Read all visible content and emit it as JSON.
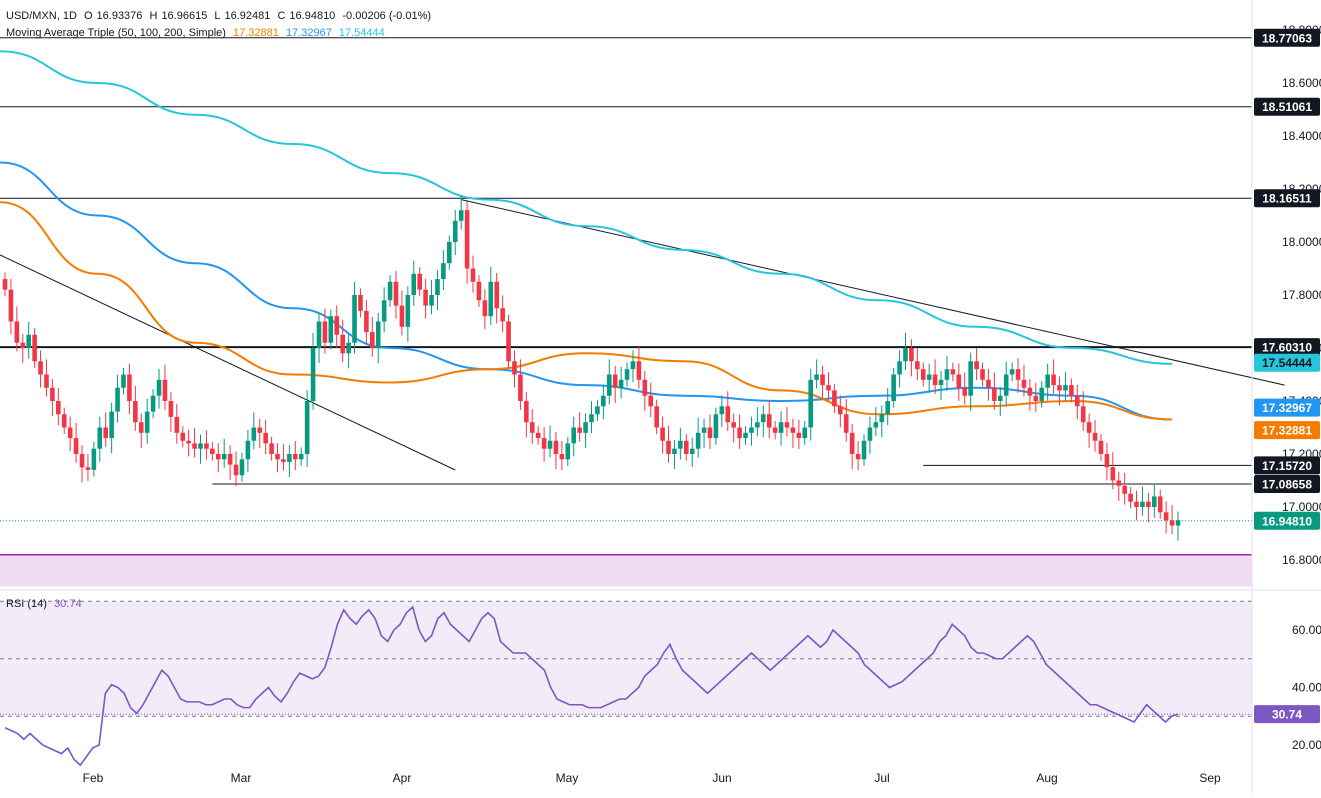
{
  "header": {
    "symbol": "USD/MXN, 1D",
    "open_label": "O",
    "open": "16.93376",
    "high_label": "H",
    "high": "16.96615",
    "low_label": "L",
    "low": "16.92481",
    "close_label": "C",
    "close": "16.94810",
    "change": "-0.00206 (-0.01%)",
    "ma_title": "Moving Average Triple (50, 100, 200, Simple)",
    "ma50": "17.32881",
    "ma100": "17.32967",
    "ma200": "17.54444",
    "rsi_title": "RSI (14)",
    "rsi_value": "30.74"
  },
  "colors": {
    "up": "#089981",
    "down": "#f23645",
    "ma50": "#f57c00",
    "ma100": "#2196f3",
    "ma200": "#26c6da",
    "rsi": "#7e57c2",
    "rsi_band": "#ede7f6",
    "purple_zone": "#e1bee7"
  },
  "chart_data": [
    {
      "type": "candlestick",
      "title": "USD/MXN, 1D",
      "ylim": [
        16.8,
        18.8
      ],
      "y_ticks": [
        "16.80000",
        "17.00000",
        "17.20000",
        "17.40000",
        "17.60000",
        "17.80000",
        "18.00000",
        "18.20000",
        "18.40000",
        "18.60000",
        "18.80000"
      ],
      "x_ticks": [
        "Feb",
        "Mar",
        "Apr",
        "May",
        "Jun",
        "Jul",
        "Aug",
        "Sep"
      ],
      "horizontal_levels": [
        {
          "value": 18.77063,
          "label": "18.77063",
          "color": "#131722"
        },
        {
          "value": 18.51061,
          "label": "18.51061",
          "color": "#131722"
        },
        {
          "value": 18.16511,
          "label": "18.16511",
          "color": "#131722"
        },
        {
          "value": 17.6031,
          "label": "17.60310",
          "color": "#131722"
        },
        {
          "value": 17.1572,
          "label": "17.15720",
          "color": "#131722"
        },
        {
          "value": 17.08658,
          "label": "17.08658",
          "color": "#131722"
        }
      ],
      "price_labels": [
        {
          "value": 17.54444,
          "label": "17.54444",
          "color": "#26c6da"
        },
        {
          "value": 17.32967,
          "label": "17.32967",
          "color": "#2196f3"
        },
        {
          "value": 17.32881,
          "label": "17.32881",
          "color": "#f57c00"
        },
        {
          "value": 16.9481,
          "label": "16.94810",
          "color": "#089981"
        }
      ],
      "support_zone": [
        16.7,
        16.82
      ],
      "trendlines": [
        {
          "x": [
            0,
            84
          ],
          "y": [
            17.96,
            17.15
          ]
        },
        {
          "x": [
            85,
            240
          ],
          "y": [
            18.16,
            17.46
          ]
        },
        {
          "x": [
            170,
            239
          ],
          "y": [
            17.16,
            17.16
          ]
        },
        {
          "x": [
            39,
            250
          ],
          "y": [
            17.086,
            17.086
          ]
        }
      ],
      "ohlc_close": [
        17.82,
        17.7,
        17.62,
        17.6,
        17.65,
        17.55,
        17.5,
        17.45,
        17.4,
        17.35,
        17.3,
        17.26,
        17.2,
        17.15,
        17.14,
        17.22,
        17.3,
        17.26,
        17.36,
        17.45,
        17.5,
        17.4,
        17.32,
        17.28,
        17.36,
        17.42,
        17.48,
        17.4,
        17.34,
        17.28,
        17.25,
        17.24,
        17.22,
        17.24,
        17.22,
        17.2,
        17.18,
        17.2,
        17.16,
        17.12,
        17.18,
        17.25,
        17.3,
        17.28,
        17.24,
        17.2,
        17.18,
        17.17,
        17.2,
        17.18,
        17.2,
        17.4,
        17.6,
        17.7,
        17.62,
        17.72,
        17.65,
        17.58,
        17.62,
        17.8,
        17.74,
        17.66,
        17.6,
        17.7,
        17.78,
        17.85,
        17.76,
        17.68,
        17.8,
        17.88,
        17.82,
        17.76,
        17.8,
        17.86,
        17.92,
        18.0,
        18.08,
        18.12,
        17.9,
        17.85,
        17.78,
        17.72,
        17.85,
        17.75,
        17.7,
        17.55,
        17.5,
        17.4,
        17.32,
        17.28,
        17.26,
        17.22,
        17.25,
        17.2,
        17.18,
        17.24,
        17.3,
        17.28,
        17.32,
        17.35,
        17.38,
        17.42,
        17.5,
        17.45,
        17.48,
        17.52,
        17.55,
        17.48,
        17.42,
        17.38,
        17.3,
        17.25,
        17.2,
        17.22,
        17.25,
        17.2,
        17.22,
        17.28,
        17.3,
        17.26,
        17.35,
        17.38,
        17.32,
        17.3,
        17.26,
        17.28,
        17.3,
        17.32,
        17.35,
        17.3,
        17.28,
        17.32,
        17.3,
        17.28,
        17.26,
        17.3,
        17.48,
        17.5,
        17.46,
        17.44,
        17.38,
        17.35,
        17.28,
        17.2,
        17.18,
        17.25,
        17.3,
        17.32,
        17.35,
        17.4,
        17.5,
        17.55,
        17.6,
        17.55,
        17.52,
        17.48,
        17.5,
        17.46,
        17.48,
        17.52,
        17.5,
        17.45,
        17.42,
        17.55,
        17.52,
        17.48,
        17.45,
        17.4,
        17.42,
        17.5,
        17.52,
        17.48,
        17.45,
        17.42,
        17.4,
        17.45,
        17.5,
        17.46,
        17.44,
        17.46,
        17.42,
        17.38,
        17.32,
        17.28,
        17.25,
        17.2,
        17.15,
        17.1,
        17.08,
        17.05,
        17.02,
        17.0,
        17.02,
        17.0,
        17.04,
        16.98,
        16.95,
        16.93,
        16.95
      ],
      "ma200": [
        18.72,
        18.6,
        18.48,
        18.37,
        18.26,
        18.16,
        18.06,
        17.97,
        17.88,
        17.78,
        17.68,
        17.6,
        17.54
      ],
      "ma100": [
        18.3,
        18.1,
        17.92,
        17.75,
        17.6,
        17.52,
        17.46,
        17.42,
        17.4,
        17.42,
        17.45,
        17.42,
        17.33
      ],
      "ma50": [
        18.15,
        17.88,
        17.62,
        17.5,
        17.47,
        17.52,
        17.58,
        17.55,
        17.44,
        17.35,
        17.38,
        17.4,
        17.33
      ]
    },
    {
      "type": "line",
      "title": "RSI (14)",
      "ylim": [
        12,
        72
      ],
      "y_ticks": [
        "20.00",
        "40.00",
        "60.00"
      ],
      "levels": [
        70,
        50,
        30
      ],
      "last_value_label": "30.74",
      "values": [
        26,
        25,
        24,
        22,
        24,
        22,
        20,
        19,
        18,
        17,
        19,
        15,
        13,
        16,
        19,
        20,
        38,
        41,
        40,
        38,
        33,
        31,
        34,
        38,
        42,
        46,
        44,
        40,
        36,
        35,
        35,
        35,
        34,
        34,
        35,
        36,
        36,
        34,
        33,
        33,
        36,
        38,
        40,
        37,
        35,
        38,
        42,
        45,
        44,
        43,
        44,
        47,
        54,
        62,
        67,
        64,
        62,
        65,
        67,
        64,
        58,
        56,
        60,
        62,
        66,
        68,
        60,
        56,
        58,
        64,
        66,
        62,
        60,
        58,
        56,
        60,
        64,
        66,
        64,
        56,
        54,
        52,
        52,
        52,
        50,
        48,
        46,
        40,
        36,
        35,
        34,
        34,
        34,
        33,
        33,
        33,
        34,
        35,
        36,
        36,
        38,
        40,
        44,
        46,
        48,
        52,
        55,
        50,
        46,
        44,
        42,
        40,
        38,
        40,
        42,
        44,
        46,
        48,
        50,
        52,
        50,
        48,
        46,
        48,
        50,
        52,
        54,
        56,
        58,
        56,
        54,
        56,
        60,
        58,
        56,
        54,
        52,
        48,
        46,
        44,
        42,
        40,
        41,
        42,
        44,
        46,
        48,
        50,
        52,
        56,
        58,
        62,
        60,
        58,
        54,
        52,
        52,
        51,
        50,
        50,
        52,
        54,
        56,
        58,
        56,
        52,
        48,
        46,
        44,
        42,
        40,
        38,
        36,
        34,
        34,
        33,
        32,
        31,
        30,
        29,
        28,
        31,
        34,
        32,
        30,
        28,
        30,
        30.74
      ]
    }
  ]
}
